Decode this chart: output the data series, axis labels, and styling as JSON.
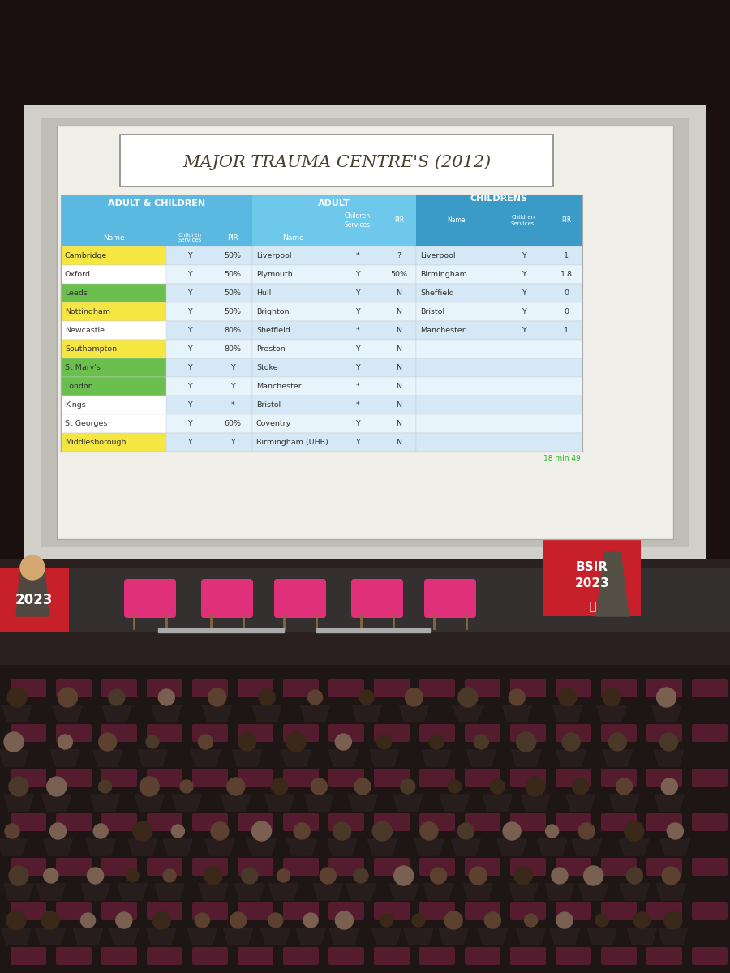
{
  "title": "MAJOR TRAUMA CENTRE'S (2012)",
  "section_headers": {
    "adult_children": "ADULT & CHILDREN",
    "adult": "ADULT",
    "childrens": "CHILDRENS"
  },
  "adult_children_rows": [
    {
      "name": "Cambridge",
      "cs": "Y",
      "pir": "50%",
      "color": "yellow"
    },
    {
      "name": "Oxford",
      "cs": "Y",
      "pir": "50%",
      "color": "white"
    },
    {
      "name": "Leeds",
      "cs": "Y",
      "pir": "50%",
      "color": "green"
    },
    {
      "name": "Nottingham",
      "cs": "Y",
      "pir": "50%",
      "color": "yellow"
    },
    {
      "name": "Newcastle",
      "cs": "Y",
      "pir": "80%",
      "color": "white"
    },
    {
      "name": "Southampton",
      "cs": "Y",
      "pir": "80%",
      "color": "yellow"
    },
    {
      "name": "St Mary's",
      "cs": "Y",
      "pir": "Y",
      "color": "green"
    },
    {
      "name": "London",
      "cs": "Y",
      "pir": "Y",
      "color": "green"
    },
    {
      "name": "Kings",
      "cs": "Y",
      "pir": "*",
      "color": "white"
    },
    {
      "name": "St Georges",
      "cs": "Y",
      "pir": "60%",
      "color": "white"
    },
    {
      "name": "Middlesborough",
      "cs": "Y",
      "pir": "Y",
      "color": "yellow"
    }
  ],
  "adult_rows": [
    {
      "name": "Liverpool",
      "cs": "*",
      "pir": "?"
    },
    {
      "name": "Plymouth",
      "cs": "Y",
      "pir": "50%"
    },
    {
      "name": "Hull",
      "cs": "Y",
      "pir": "N"
    },
    {
      "name": "Brighton",
      "cs": "Y",
      "pir": "N"
    },
    {
      "name": "Sheffield",
      "cs": "*",
      "pir": "N"
    },
    {
      "name": "Preston",
      "cs": "Y",
      "pir": "N"
    },
    {
      "name": "Stoke",
      "cs": "Y",
      "pir": "N"
    },
    {
      "name": "Manchester",
      "cs": "*",
      "pir": "N"
    },
    {
      "name": "Bristol",
      "cs": "*",
      "pir": "N"
    },
    {
      "name": "Coventry",
      "cs": "Y",
      "pir": "N"
    },
    {
      "name": "Birmingham (UHB)",
      "cs": "Y",
      "pir": "N"
    }
  ],
  "childrens_rows": [
    {
      "name": "Liverpool",
      "cs": "Y",
      "pir": "1"
    },
    {
      "name": "Birmingham",
      "cs": "Y",
      "pir": "1.8"
    },
    {
      "name": "Sheffield",
      "cs": "Y",
      "pir": "0"
    },
    {
      "name": "Bristol",
      "cs": "Y",
      "pir": "0"
    },
    {
      "name": "Manchester",
      "cs": "Y",
      "pir": "1"
    }
  ],
  "colors": {
    "hdr_blue": "#5BB8E0",
    "hdr_mid_blue": "#6EC8EB",
    "hdr_dark_blue": "#3A9AC8",
    "row_even": "#D4E8F5",
    "row_odd": "#E8F4FB",
    "yellow": "#F5E642",
    "green": "#6BBF4E",
    "text": "#4A4A4A",
    "note_green": "#22BB22",
    "slide_bg": "#C8C8C8",
    "room_top": "#1A1010",
    "stage_floor": "#383030",
    "audience_floor": "#1E1818"
  }
}
